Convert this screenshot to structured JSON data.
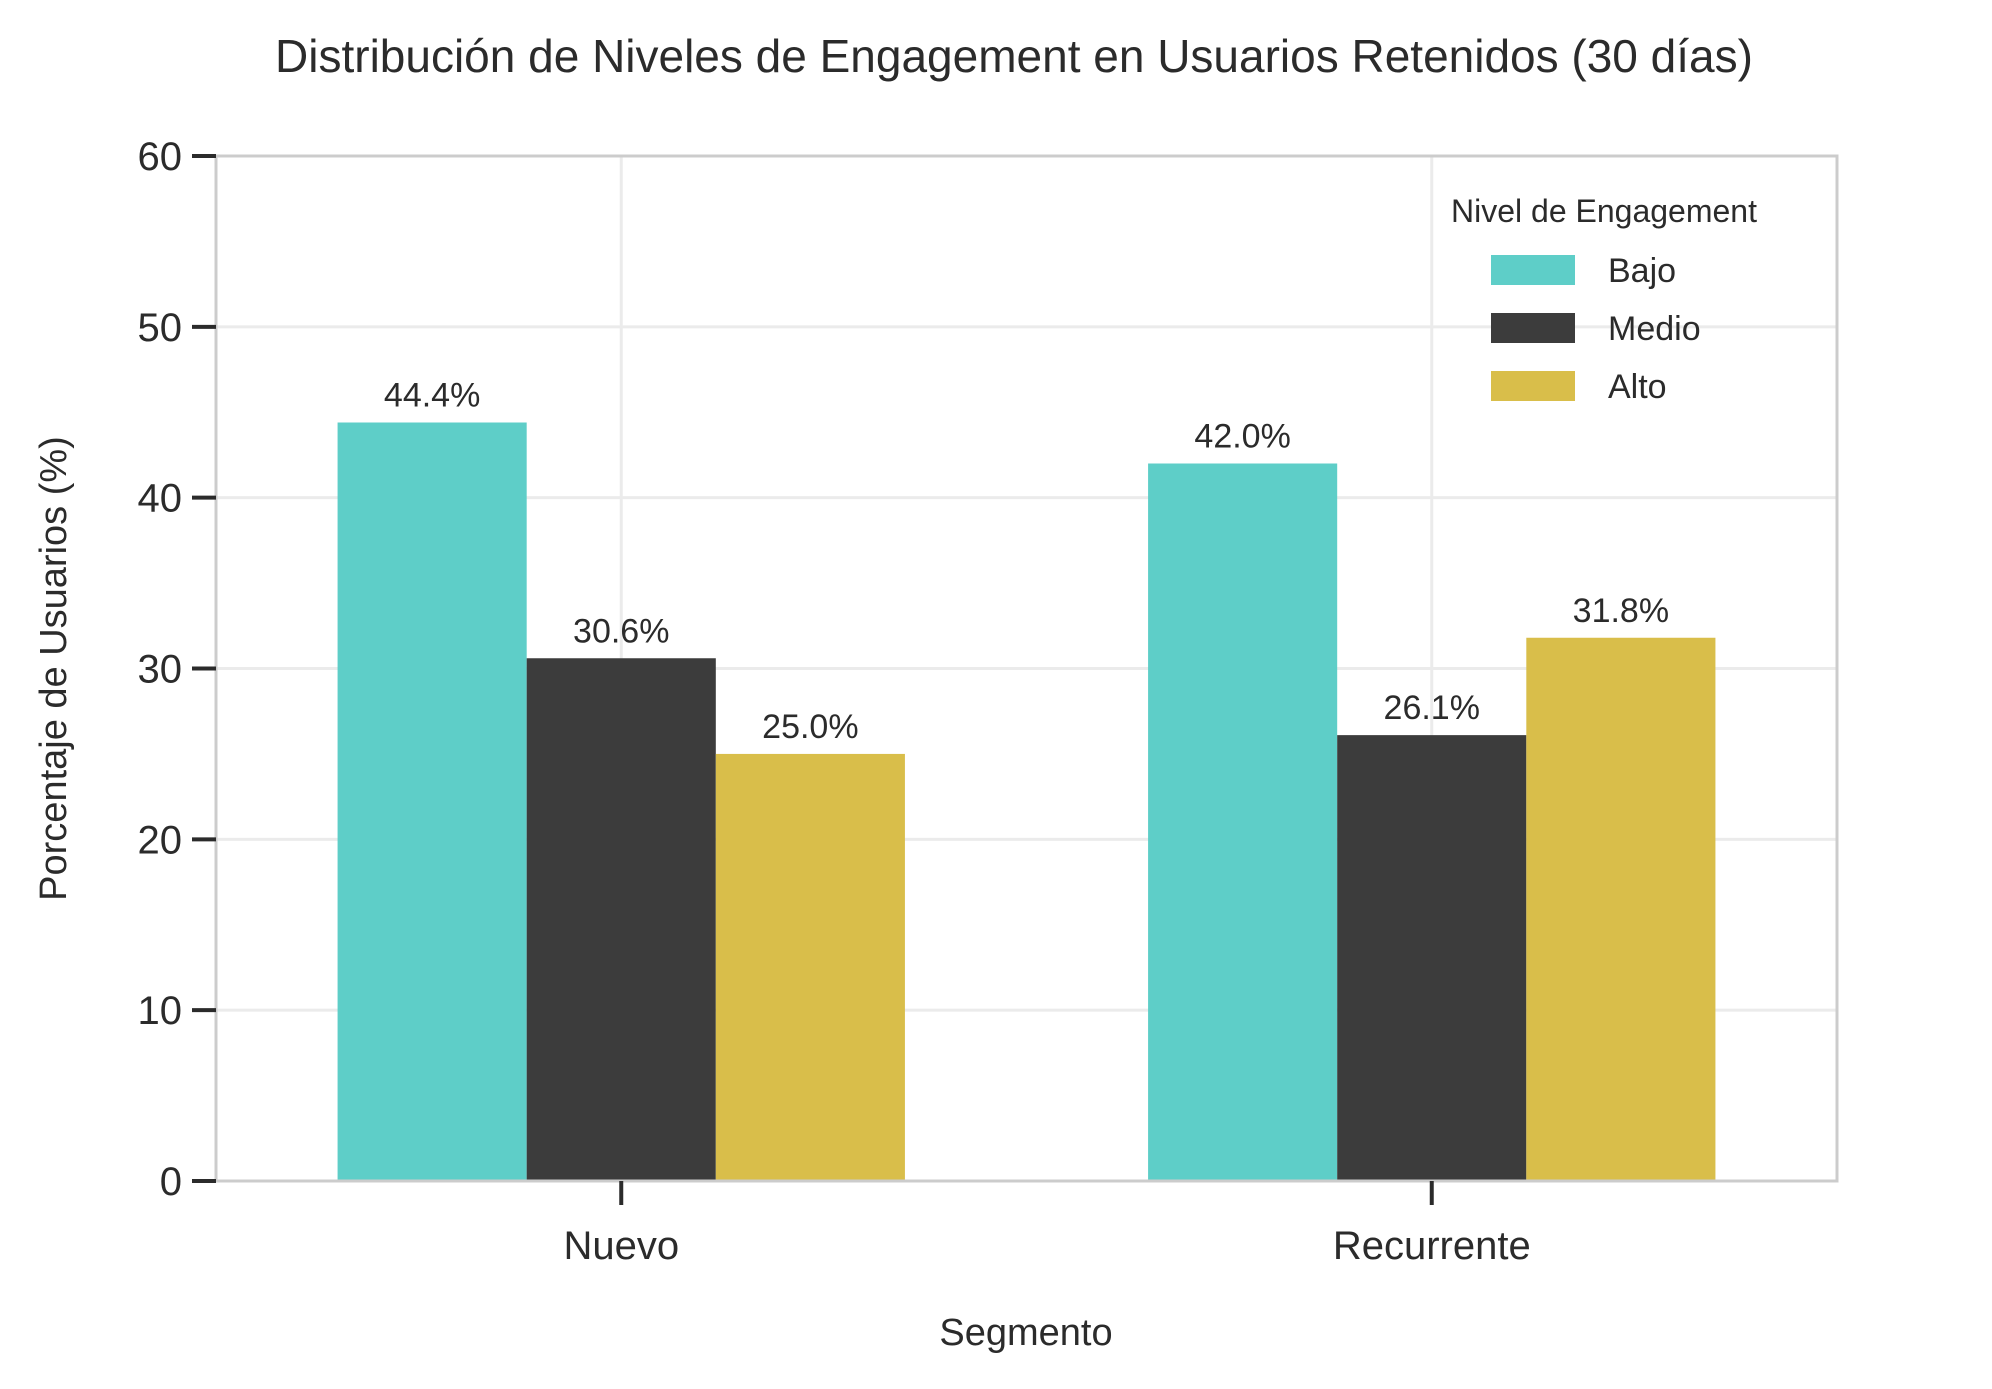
{
  "chart_data": {
    "type": "bar",
    "title": "Distribución de Niveles de Engagement en Usuarios Retenidos (30 días)",
    "xlabel": "Segmento",
    "ylabel": "Porcentaje de Usuarios (%)",
    "categories": [
      "Nuevo",
      "Recurrente"
    ],
    "series": [
      {
        "name": "Bajo",
        "values": [
          44.4,
          42.0
        ],
        "labels": [
          "44.4%",
          "42.0%"
        ],
        "color": "#5ecec8"
      },
      {
        "name": "Medio",
        "values": [
          30.6,
          26.1
        ],
        "labels": [
          "30.6%",
          "26.1%"
        ],
        "color": "#3c3c3c"
      },
      {
        "name": "Alto",
        "values": [
          25.0,
          31.8
        ],
        "labels": [
          "25.0%",
          "31.8%"
        ],
        "color": "#d9be4a"
      }
    ],
    "ylim": [
      0,
      60
    ],
    "yticks": [
      0,
      10,
      20,
      30,
      40,
      50,
      60
    ],
    "ytick_labels": [
      "0",
      "10",
      "20",
      "30",
      "40",
      "50",
      "60"
    ],
    "grid": true,
    "legend": {
      "title": "Nivel de Engagement",
      "placement": "top-right"
    }
  }
}
